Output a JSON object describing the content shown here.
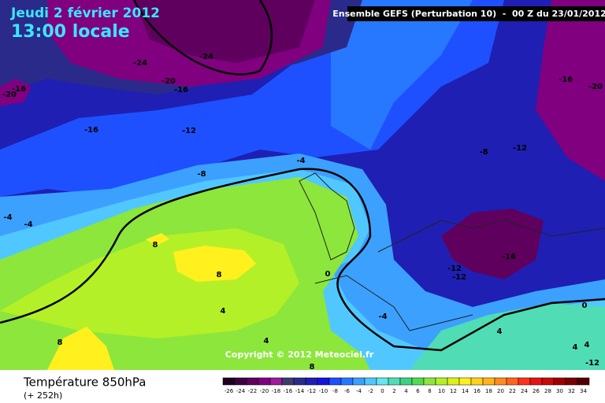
{
  "header": {
    "date": "Jeudi 2 février 2012",
    "time": "13:00 locale",
    "model": "Ensemble GEFS (Perturbation 10)  -  00 Z du 23/01/2012"
  },
  "map": {
    "contour_labels": [
      "-24",
      "-24",
      "-20",
      "-16",
      "-16",
      "-20",
      "-16",
      "-12",
      "-8",
      "-4",
      "-4",
      "-4",
      "-8",
      "-12",
      "-16",
      "-20",
      "-16",
      "-12",
      "-12",
      "8",
      "8",
      "0",
      "-4",
      "4",
      "4",
      "8",
      "8",
      "0",
      "4",
      "4",
      "4",
      "-12"
    ],
    "copyright": "Copyright © 2012 Meteociel.fr"
  },
  "footer": {
    "title": "Température 850hPa",
    "subtitle": "(+ 252h)"
  },
  "scale": {
    "labels": [
      -26,
      -24,
      -22,
      -20,
      -18,
      -16,
      -14,
      -12,
      -10,
      -8,
      -6,
      -4,
      -2,
      0,
      2,
      4,
      6,
      8,
      10,
      12,
      14,
      16,
      18,
      20,
      22,
      24,
      26,
      28,
      30,
      32,
      34
    ],
    "colors": [
      "#1f001f",
      "#3f003f",
      "#5f005f",
      "#800080",
      "#9e1a9e",
      "#3c3c6e",
      "#2a2a8a",
      "#1e1eb4",
      "#1414dc",
      "#1e50ff",
      "#2878ff",
      "#3ca0ff",
      "#50c8ff",
      "#64e6f0",
      "#50dcb4",
      "#3cd282",
      "#50dc50",
      "#8ce63c",
      "#b4f028",
      "#dcf01e",
      "#fff01e",
      "#ffd21e",
      "#ffb41e",
      "#ff8c1e",
      "#ff641e",
      "#ff321e",
      "#e61414",
      "#c80a0a",
      "#a00000",
      "#780000",
      "#500000"
    ]
  }
}
